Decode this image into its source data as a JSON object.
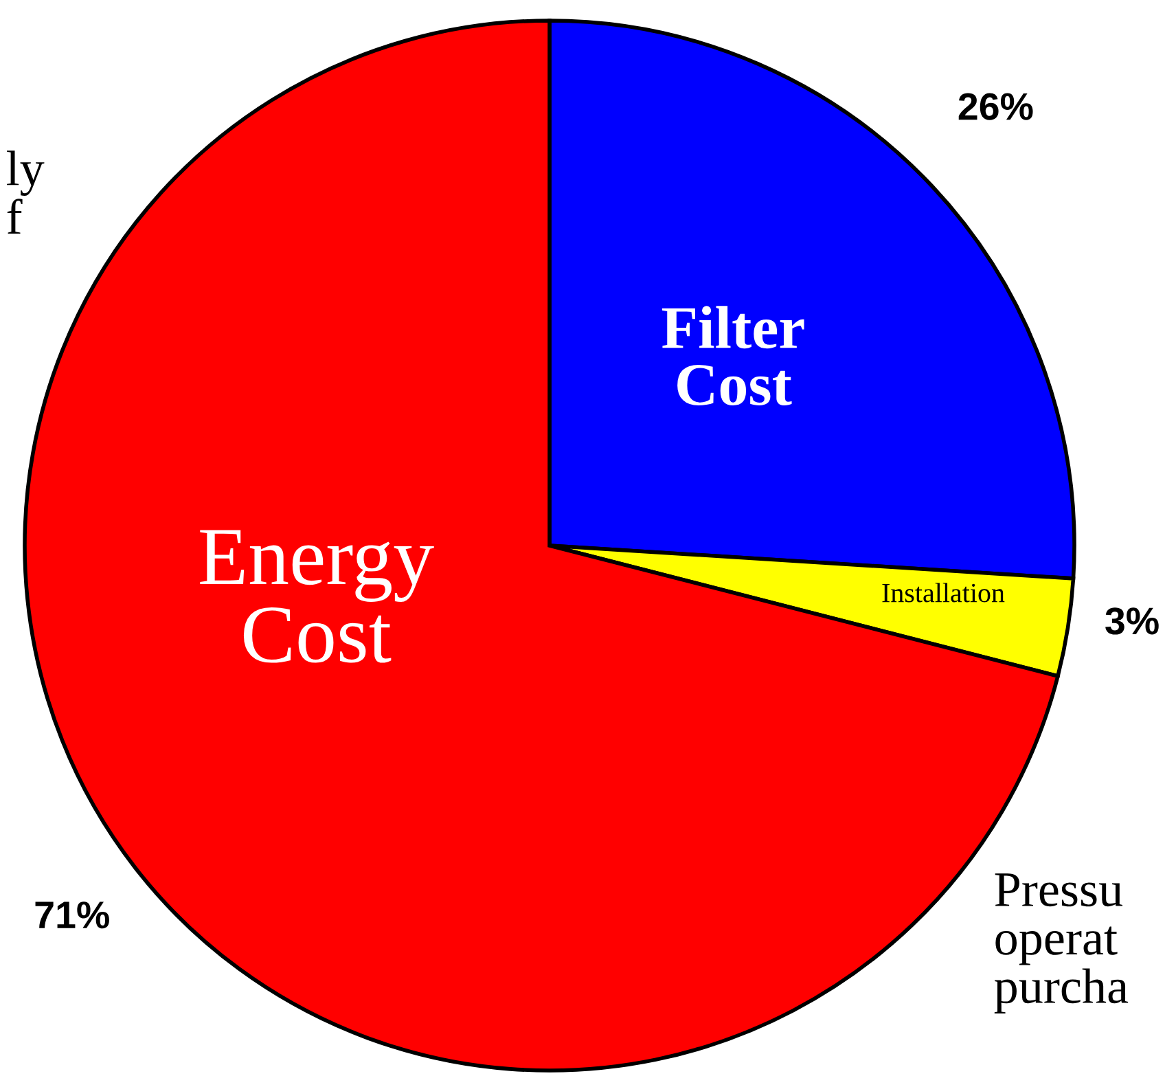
{
  "chart_data": {
    "type": "pie",
    "categories": [
      "Filter\nCost",
      "Installation",
      "Energy\nCost"
    ],
    "values": [
      26,
      3,
      71
    ],
    "colors": [
      "#0000ff",
      "#ffff00",
      "#ff0000"
    ],
    "value_labels": [
      "26%",
      "3%",
      "71%"
    ],
    "annotations": [
      "ly\nf",
      "Pressu\noperat\npurcha"
    ]
  }
}
